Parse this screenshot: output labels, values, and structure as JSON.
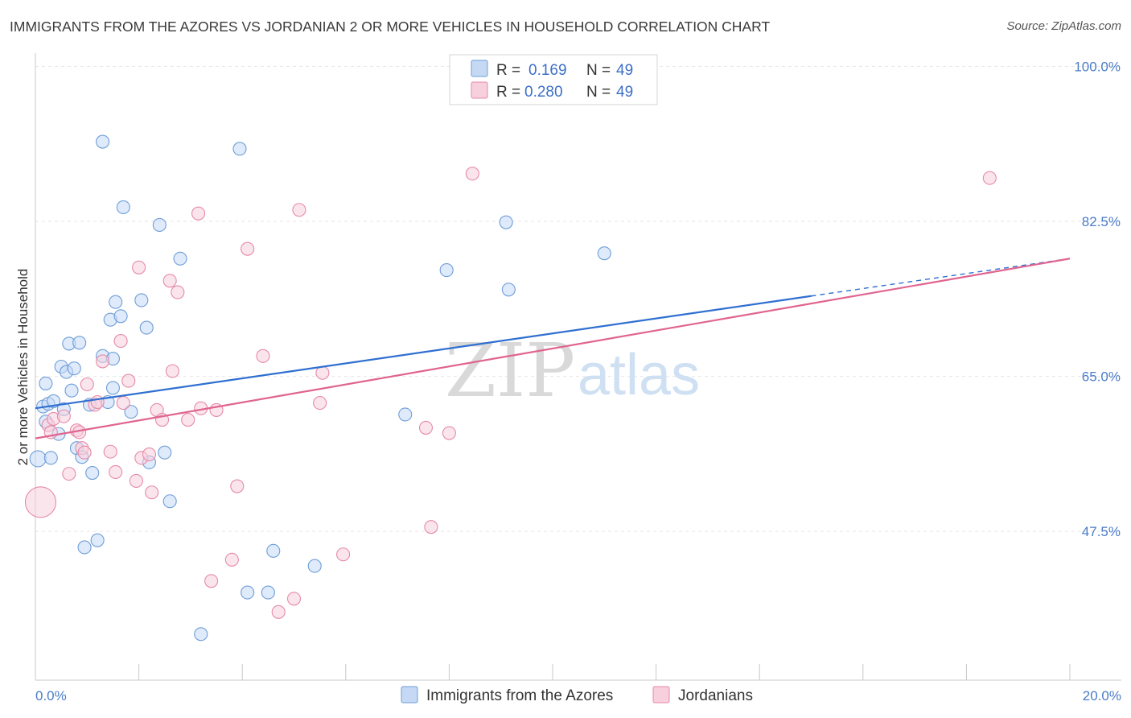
{
  "title": "IMMIGRANTS FROM THE AZORES VS JORDANIAN 2 OR MORE VEHICLES IN HOUSEHOLD CORRELATION CHART",
  "source": "Source: ZipAtlas.com",
  "watermark": {
    "zip": "ZIP",
    "atlas": "atlas"
  },
  "legend": {
    "r_label": "R =",
    "n_label": "N =",
    "series": [
      {
        "r": "0.169",
        "n": "49"
      },
      {
        "r": "0.280",
        "n": "49"
      }
    ]
  },
  "colors": {
    "azores_fill": "#c5d9f5",
    "azores_stroke": "#6f9ed8",
    "azores_line": "#2f6fd0",
    "jordan_fill": "#f8cfdc",
    "jordan_stroke": "#e68aa8",
    "jordan_line": "#e0648f",
    "grid": "#e6e6e6",
    "tick_text": "#4a7cc8"
  },
  "chart_data": {
    "type": "scatter",
    "title": "IMMIGRANTS FROM THE AZORES VS JORDANIAN 2 OR MORE VEHICLES IN HOUSEHOLD CORRELATION CHART",
    "xlabel": "",
    "ylabel": "2 or more Vehicles in Household",
    "xlim": [
      0,
      20
    ],
    "ylim": [
      30.7,
      101.5
    ],
    "x_tick_labels": [
      "0.0%",
      "20.0%"
    ],
    "y_ticks": [
      47.5,
      65.0,
      82.5,
      100.0
    ],
    "y_tick_labels": [
      "47.5%",
      "65.0%",
      "82.5%",
      "100.0%"
    ],
    "grid": true,
    "legend_position": "top-center",
    "series": [
      {
        "name": "Immigrants from the Azores",
        "r": 0.169,
        "n": 49,
        "trend": {
          "x0": 0,
          "y0": 61.4,
          "x1": 20,
          "y1": 78.3,
          "solid_until_x": 15.0
        },
        "points": [
          [
            0.05,
            55.7
          ],
          [
            0.15,
            61.6
          ],
          [
            0.2,
            59.9
          ],
          [
            0.2,
            64.2
          ],
          [
            0.25,
            61.9
          ],
          [
            0.3,
            55.8
          ],
          [
            0.35,
            62.2
          ],
          [
            0.45,
            58.5
          ],
          [
            0.5,
            66.1
          ],
          [
            0.55,
            61.3
          ],
          [
            0.6,
            65.5
          ],
          [
            0.65,
            68.7
          ],
          [
            0.7,
            63.4
          ],
          [
            0.75,
            65.9
          ],
          [
            0.8,
            56.9
          ],
          [
            0.85,
            68.8
          ],
          [
            0.9,
            55.9
          ],
          [
            0.95,
            45.7
          ],
          [
            1.05,
            61.8
          ],
          [
            1.1,
            54.1
          ],
          [
            1.2,
            46.5
          ],
          [
            1.3,
            91.5
          ],
          [
            1.3,
            67.3
          ],
          [
            1.45,
            71.4
          ],
          [
            1.5,
            63.7
          ],
          [
            1.5,
            67.0
          ],
          [
            1.4,
            62.1
          ],
          [
            1.55,
            73.4
          ],
          [
            1.65,
            71.8
          ],
          [
            1.7,
            84.1
          ],
          [
            1.85,
            61.0
          ],
          [
            2.05,
            73.6
          ],
          [
            2.15,
            70.5
          ],
          [
            2.2,
            55.3
          ],
          [
            2.4,
            82.1
          ],
          [
            2.5,
            56.4
          ],
          [
            2.6,
            50.9
          ],
          [
            2.8,
            78.3
          ],
          [
            3.2,
            35.9
          ],
          [
            3.95,
            90.7
          ],
          [
            4.1,
            40.6
          ],
          [
            4.5,
            40.6
          ],
          [
            4.6,
            45.3
          ],
          [
            5.4,
            43.6
          ],
          [
            7.15,
            60.7
          ],
          [
            7.95,
            77.0
          ],
          [
            9.1,
            82.4
          ],
          [
            9.15,
            74.8
          ],
          [
            11.0,
            78.9
          ]
        ]
      },
      {
        "name": "Jordanians",
        "r": 0.28,
        "n": 49,
        "trend": {
          "x0": 0,
          "y0": 58.0,
          "x1": 20,
          "y1": 78.3
        },
        "points": [
          [
            0.1,
            50.8
          ],
          [
            0.25,
            59.5
          ],
          [
            0.3,
            58.7
          ],
          [
            0.35,
            60.2
          ],
          [
            0.55,
            60.5
          ],
          [
            0.65,
            54.0
          ],
          [
            0.8,
            58.9
          ],
          [
            0.85,
            58.7
          ],
          [
            0.9,
            56.9
          ],
          [
            0.95,
            56.4
          ],
          [
            1.0,
            64.1
          ],
          [
            1.15,
            61.8
          ],
          [
            1.2,
            62.1
          ],
          [
            1.3,
            66.7
          ],
          [
            1.45,
            56.5
          ],
          [
            1.55,
            54.2
          ],
          [
            1.65,
            69.0
          ],
          [
            1.7,
            62.0
          ],
          [
            1.8,
            64.5
          ],
          [
            1.95,
            53.2
          ],
          [
            2.0,
            77.3
          ],
          [
            2.05,
            55.8
          ],
          [
            2.2,
            56.2
          ],
          [
            2.25,
            51.9
          ],
          [
            2.35,
            61.2
          ],
          [
            2.45,
            60.1
          ],
          [
            2.6,
            75.8
          ],
          [
            2.65,
            65.6
          ],
          [
            2.75,
            74.5
          ],
          [
            3.15,
            83.4
          ],
          [
            3.2,
            61.4
          ],
          [
            3.4,
            41.9
          ],
          [
            3.5,
            61.2
          ],
          [
            3.8,
            44.3
          ],
          [
            3.9,
            52.6
          ],
          [
            4.1,
            79.4
          ],
          [
            4.4,
            67.3
          ],
          [
            4.7,
            38.4
          ],
          [
            5.0,
            39.9
          ],
          [
            5.1,
            83.8
          ],
          [
            5.5,
            62.0
          ],
          [
            5.55,
            65.4
          ],
          [
            5.95,
            44.9
          ],
          [
            7.55,
            59.2
          ],
          [
            7.65,
            48.0
          ],
          [
            8.0,
            58.6
          ],
          [
            8.45,
            87.9
          ],
          [
            18.45,
            87.4
          ],
          [
            2.95,
            60.1
          ]
        ]
      }
    ]
  }
}
